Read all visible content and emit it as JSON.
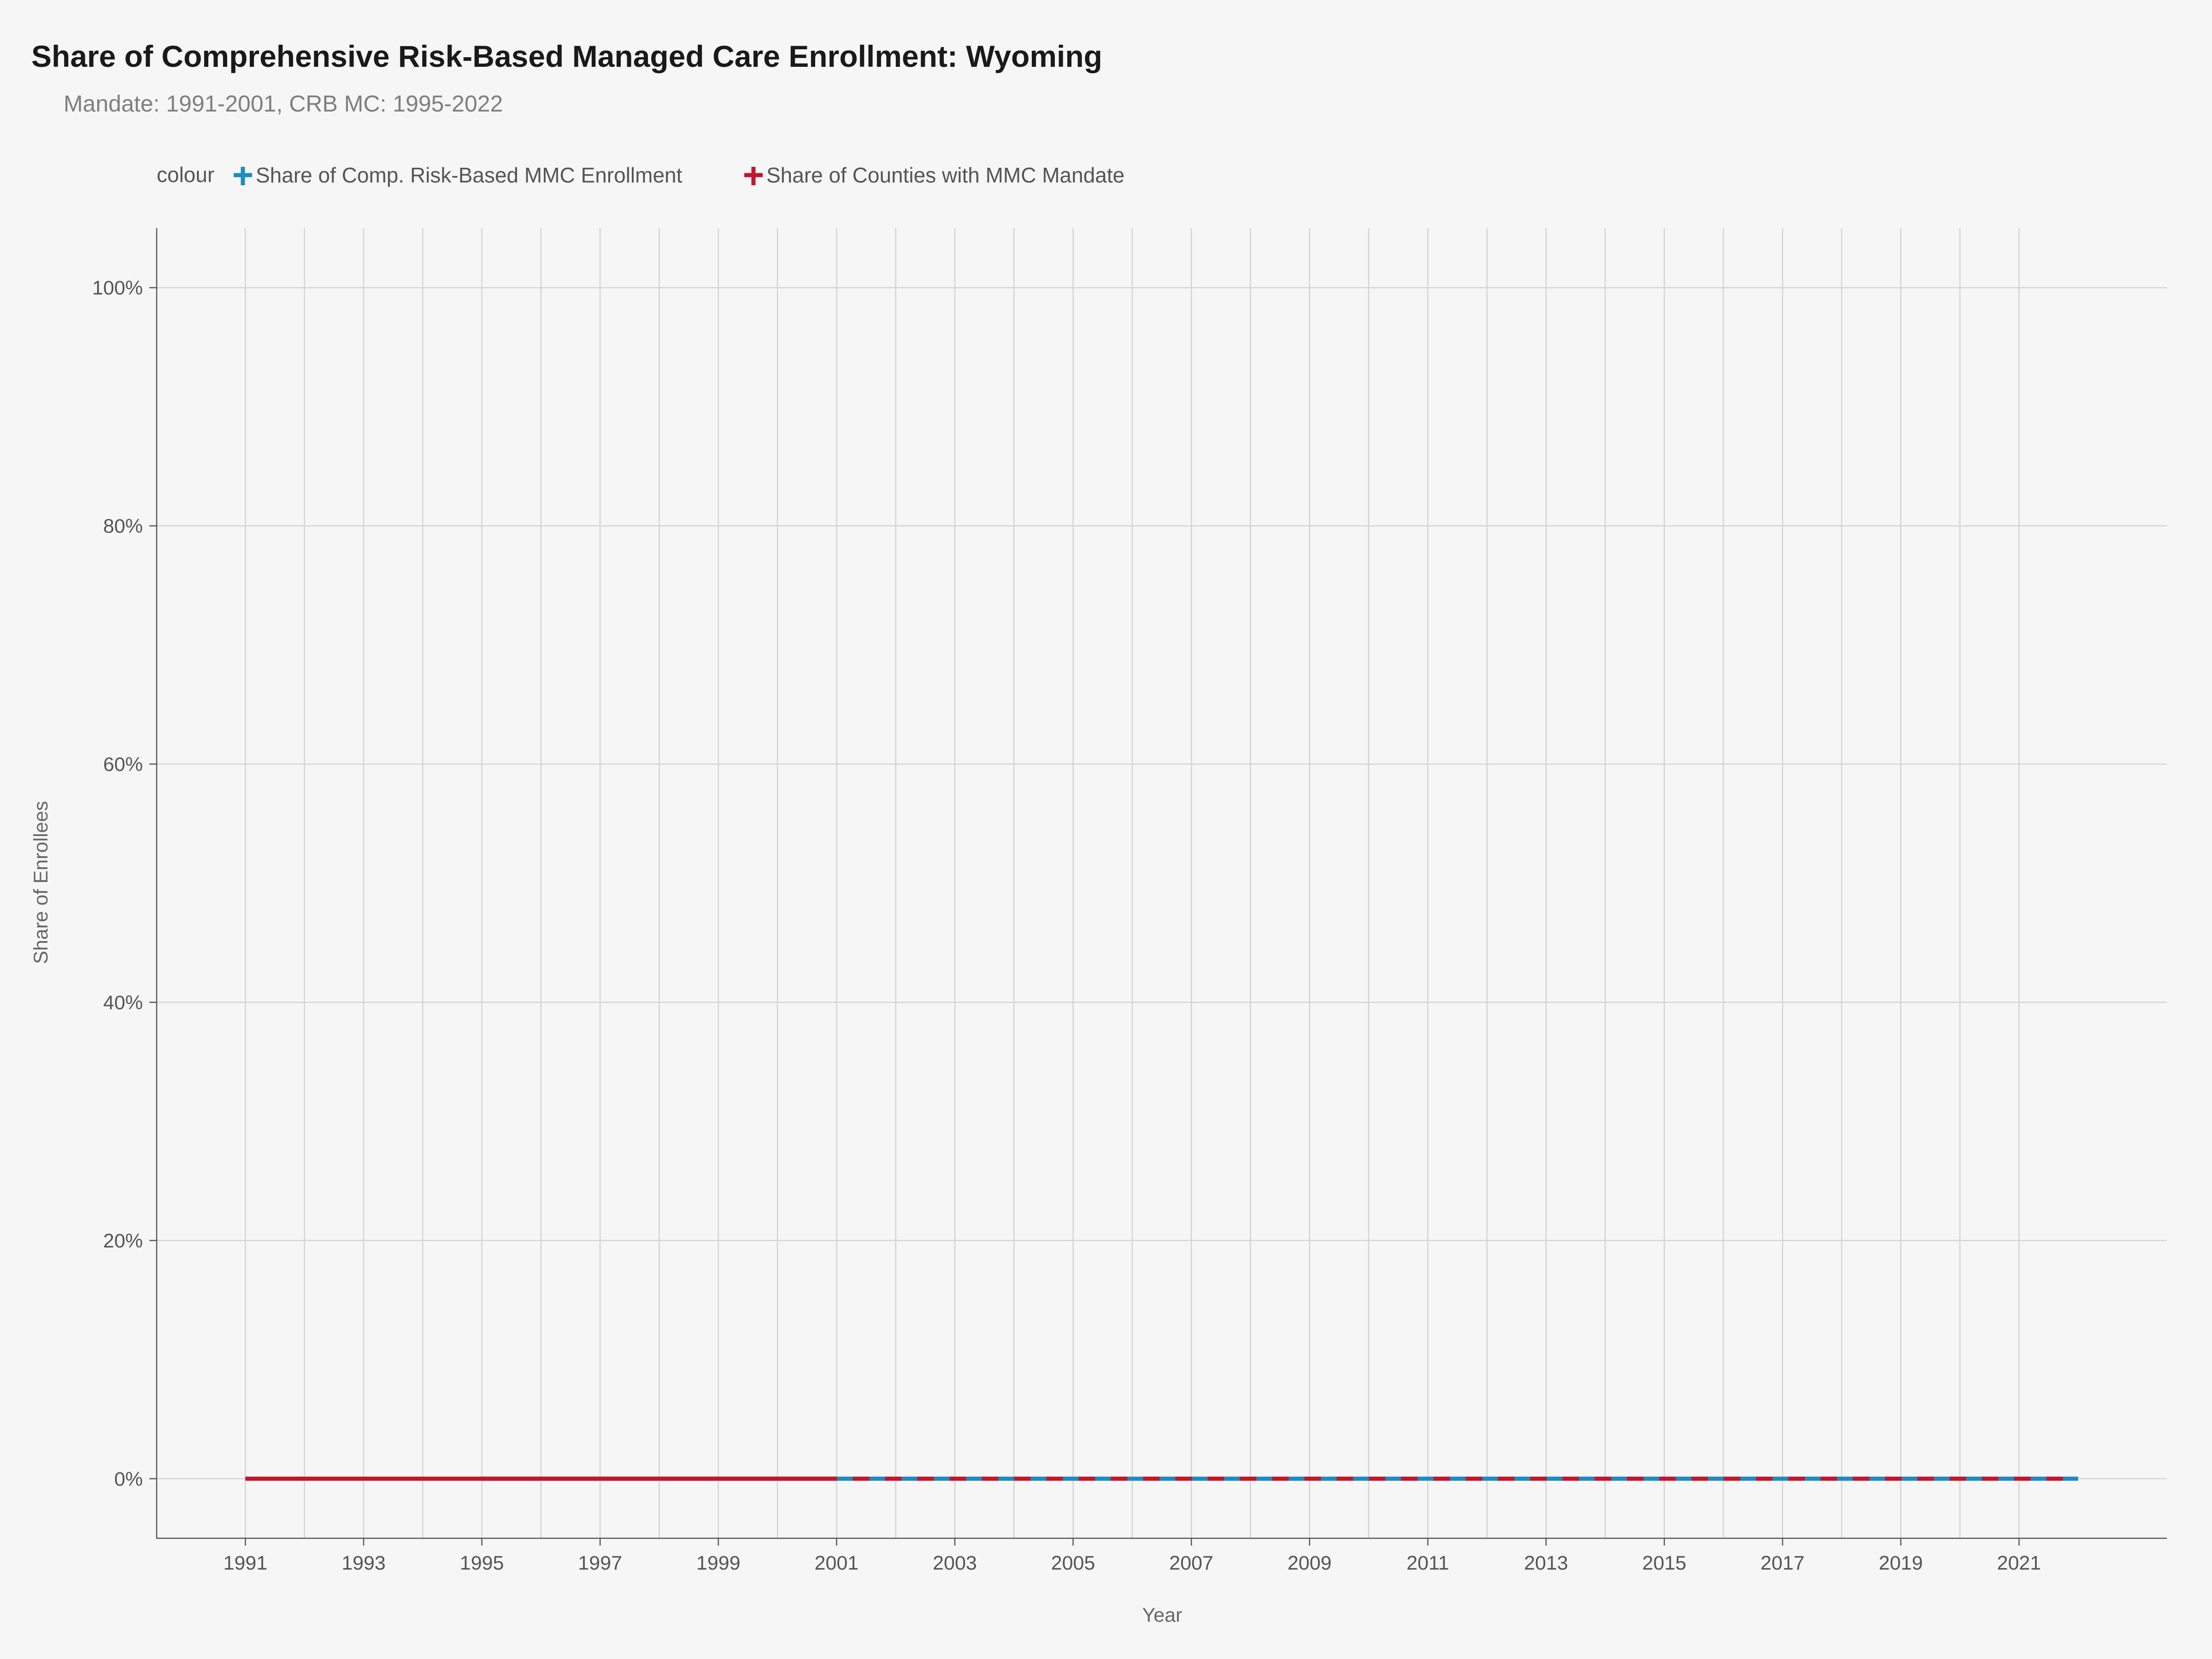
{
  "chart_data": {
    "type": "line",
    "title": "Share of Comprehensive Risk-Based Managed Care Enrollment: Wyoming",
    "subtitle": "Mandate: 1991-2001, CRB MC: 1995-2022",
    "xlabel": "Year",
    "ylabel": "Share of Enrollees",
    "legend_title": "colour",
    "legend_position": "top-left",
    "grid": true,
    "xlim": [
      1989.5,
      2023.5
    ],
    "ylim": [
      -0.05,
      1.05
    ],
    "x_ticks": [
      1991,
      1993,
      1995,
      1997,
      1999,
      2001,
      2003,
      2005,
      2007,
      2009,
      2011,
      2013,
      2015,
      2017,
      2019,
      2021
    ],
    "x_tick_labels": [
      "1991",
      "1993",
      "1995",
      "1997",
      "1999",
      "2001",
      "2003",
      "2005",
      "2007",
      "2009",
      "2011",
      "2013",
      "2015",
      "2017",
      "2019",
      "2021"
    ],
    "y_ticks": [
      0,
      0.2,
      0.4,
      0.6,
      0.8,
      1.0
    ],
    "y_tick_labels": [
      "0%",
      "20%",
      "40%",
      "60%",
      "80%",
      "100%"
    ],
    "series": [
      {
        "name": "Share of Comp. Risk-Based MMC Enrollment",
        "color": "#1f8bbf",
        "solid_segment": [
          1995,
          2001
        ],
        "dashed_segment": [
          2001,
          2022
        ],
        "x": [
          1995,
          1996,
          1997,
          1998,
          1999,
          2000,
          2001,
          2002,
          2003,
          2004,
          2005,
          2006,
          2007,
          2008,
          2009,
          2010,
          2011,
          2012,
          2013,
          2014,
          2015,
          2016,
          2017,
          2018,
          2019,
          2020,
          2021,
          2022
        ],
        "values": [
          0,
          0,
          0,
          0,
          0,
          0,
          0,
          0,
          0,
          0,
          0,
          0,
          0,
          0,
          0,
          0,
          0,
          0,
          0,
          0,
          0,
          0,
          0,
          0,
          0,
          0,
          0,
          0
        ]
      },
      {
        "name": "Share of Counties with MMC Mandate",
        "color": "#c0172e",
        "solid_segment": [
          1991,
          2001
        ],
        "dashed_segment": [
          2001,
          2022
        ],
        "x": [
          1991,
          1992,
          1993,
          1994,
          1995,
          1996,
          1997,
          1998,
          1999,
          2000,
          2001,
          2002,
          2003,
          2004,
          2005,
          2006,
          2007,
          2008,
          2009,
          2010,
          2011,
          2012,
          2013,
          2014,
          2015,
          2016,
          2017,
          2018,
          2019,
          2020,
          2021,
          2022
        ],
        "values": [
          0,
          0,
          0,
          0,
          0,
          0,
          0,
          0,
          0,
          0,
          0,
          0,
          0,
          0,
          0,
          0,
          0,
          0,
          0,
          0,
          0,
          0,
          0,
          0,
          0,
          0,
          0,
          0,
          0,
          0,
          0,
          0
        ]
      }
    ]
  }
}
